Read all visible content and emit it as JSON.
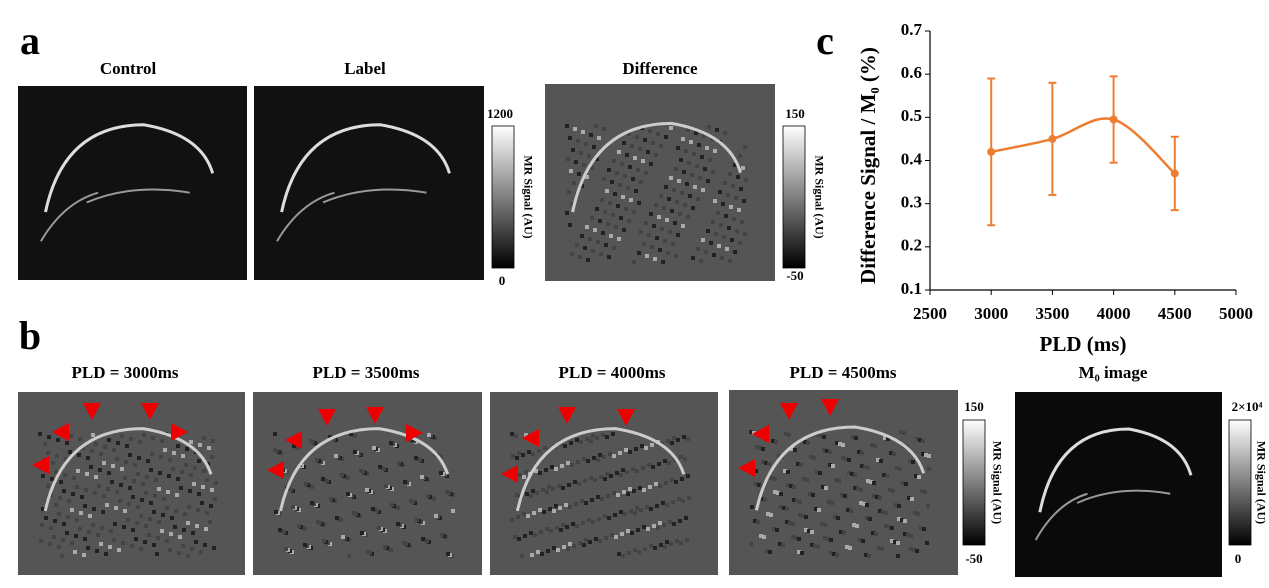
{
  "panel_labels": [
    "a",
    "b",
    "c"
  ],
  "top_images": {
    "titles": [
      "Control",
      "Label",
      "Difference"
    ]
  },
  "bottom_images": {
    "titles": [
      "PLD = 3000ms",
      "PLD = 3500ms",
      "PLD = 4000ms",
      "PLD = 4500ms",
      "M₀ image"
    ]
  },
  "colorbars": [
    {
      "label": "MR Signal (AU)",
      "max": 1200,
      "min": 0
    },
    {
      "label": "MR Signal (AU)",
      "max": 150,
      "min": -50
    },
    {
      "label": "MR Signal (AU)",
      "max": 150,
      "min": -50
    },
    {
      "label": "MR Signal (AU)",
      "max": {
        "value": 20000,
        "label": "2×10⁴"
      },
      "min": 0
    }
  ],
  "chart_data": {
    "type": "line",
    "smooth": true,
    "xlabel": "PLD (ms)",
    "ylabel": "Difference Signal / M₀ (%)",
    "x": [
      3000,
      3500,
      4000,
      4500
    ],
    "series": [
      {
        "color": "#ed7d31",
        "values": [
          0.42,
          0.45,
          0.495,
          0.37
        ],
        "errors": [
          0.17,
          0.13,
          0.1,
          0.085
        ]
      }
    ],
    "xlim": [
      2500,
      5000
    ],
    "xticks": [
      2500,
      3000,
      3500,
      4000,
      4500,
      5000
    ],
    "ylim": [
      0.1,
      0.7
    ],
    "yticks": [
      0.1,
      0.2,
      0.3,
      0.4,
      0.5,
      0.6,
      0.7
    ]
  }
}
